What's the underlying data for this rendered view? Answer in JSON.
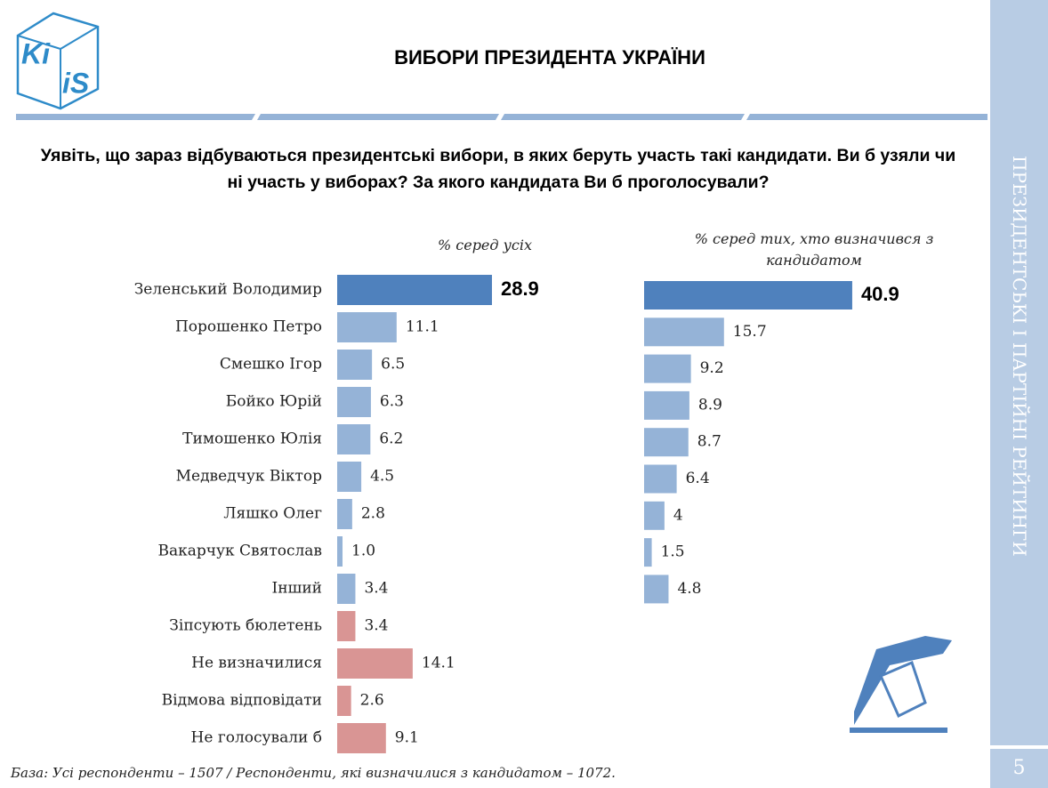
{
  "logo": {
    "top": "Ki",
    "bottom": "iS"
  },
  "header": {
    "title": "ВИБОРИ ПРЕЗИДЕНТА УКРАЇНИ"
  },
  "question": "Уявіть, що зараз відбуваються президентські вибори, в яких беруть участь такі кандидати. Ви б узяли чи ні участь у виборах? За якого кандидата Ви б проголосували?",
  "footnote": "База: Усі респонденти – 1507 / Респонденти, які визначилися з кандидатом – 1072.",
  "sidebar": "ПРЕЗИДЕНТСЬКІ І ПАРТІЙНІ РЕЙТИНГИ",
  "page_number": "5",
  "chart_data": [
    {
      "type": "bar",
      "orientation": "horizontal",
      "subtitle": "% серед усіх",
      "categories": [
        "Зеленський Володимир",
        "Порошенко Петро",
        "Смешко Ігор",
        "Бойко Юрій",
        "Тимошенко Юлія",
        "Медведчук Віктор",
        "Ляшко Олег",
        "Вакарчук Святослав",
        "Інший",
        "Зіпсують бюлетень",
        "Не визначилися",
        "Відмова відповідати",
        "Не голосували б"
      ],
      "values": [
        28.9,
        11.1,
        6.5,
        6.3,
        6.2,
        4.5,
        2.8,
        1.0,
        3.4,
        3.4,
        14.1,
        2.6,
        9.1
      ],
      "value_labels": [
        "28.9",
        "11.1",
        "6.5",
        "6.3",
        "6.2",
        "4.5",
        "2.8",
        "1.0",
        "3.4",
        "3.4",
        "14.1",
        "2.6",
        "9.1"
      ],
      "colors": [
        "#4f81bd",
        "#95b3d7",
        "#95b3d7",
        "#95b3d7",
        "#95b3d7",
        "#95b3d7",
        "#95b3d7",
        "#95b3d7",
        "#95b3d7",
        "#d99594",
        "#d99594",
        "#d99594",
        "#d99594"
      ]
    },
    {
      "type": "bar",
      "orientation": "horizontal",
      "subtitle": "% серед тих, хто визначився з кандидатом",
      "values": [
        40.9,
        15.7,
        9.2,
        8.9,
        8.7,
        6.4,
        4,
        1.5,
        4.8
      ],
      "colors": [
        "#4f81bd",
        "#95b3d7",
        "#95b3d7",
        "#95b3d7",
        "#95b3d7",
        "#95b3d7",
        "#95b3d7",
        "#95b3d7",
        "#95b3d7"
      ]
    }
  ]
}
